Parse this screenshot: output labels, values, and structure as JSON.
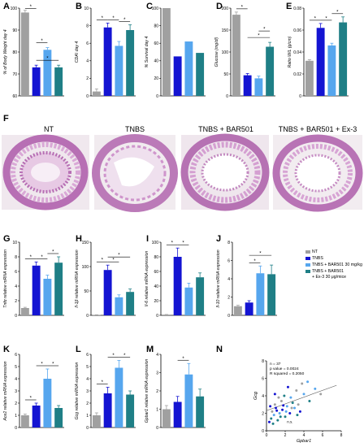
{
  "colors": {
    "nt": "#a0a0a0",
    "tnbs": "#1414d2",
    "tnbs_bar": "#56a6ee",
    "tnbs_bar_ex": "#1f7f86",
    "tissue": "#b76fb4",
    "tissue_light": "#e7c9e4"
  },
  "panel_letters": [
    "A",
    "B",
    "C",
    "D",
    "E",
    "F",
    "G",
    "H",
    "I",
    "J",
    "K",
    "L",
    "M",
    "N"
  ],
  "histology_labels": [
    "NT",
    "TNBS",
    "TNBS + BAR501",
    "TNBS + BAR501 + Ex-3"
  ],
  "legend": {
    "entries": [
      {
        "label": "NT",
        "color": "#a0a0a0"
      },
      {
        "label": "TNBS",
        "color": "#1414d2"
      },
      {
        "label": "TNBS + BAR501 30 mg/kg",
        "color": "#56a6ee"
      },
      {
        "label": "TNBS + BAR501",
        "color": "#1f7f86"
      }
    ],
    "extra": "+ Ex-3 30 μg/mice"
  },
  "chart_data": [
    {
      "panel": "A",
      "type": "bar",
      "categories": [
        "NT",
        "TNBS",
        "TNBS + BAR501 30 mg/kg",
        "TNBS + BAR501 + Ex-3"
      ],
      "values": [
        98,
        73,
        81,
        73
      ],
      "errors": [
        1,
        1,
        1,
        1
      ],
      "ylabel": "% of Body Weight day 4",
      "ylim": [
        60,
        100
      ],
      "yticks": [
        60,
        70,
        80,
        90,
        100
      ]
    },
    {
      "panel": "B",
      "type": "bar",
      "categories": [
        "NT",
        "TNBS",
        "TNBS + BAR501 30 mg/kg",
        "TNBS + BAR501 + Ex-3"
      ],
      "values": [
        0.5,
        7.8,
        5.7,
        7.5
      ],
      "errors": [
        0.3,
        0.5,
        0.5,
        0.6
      ],
      "ylabel": "CDAI day 4",
      "ylim": [
        0,
        10
      ],
      "yticks": [
        0,
        2,
        4,
        6,
        8,
        10
      ]
    },
    {
      "panel": "C",
      "type": "bar",
      "categories": [
        "NT",
        "TNBS",
        "TNBS + BAR501 30 mg/kg",
        "TNBS + BAR501 + Ex-3"
      ],
      "values": [
        100,
        45,
        62,
        49
      ],
      "errors": [
        0,
        0,
        0,
        0
      ],
      "ylabel": "% Survival day 4",
      "ylim": [
        0,
        100
      ],
      "yticks": [
        0,
        20,
        40,
        60,
        80,
        100
      ]
    },
    {
      "panel": "D",
      "type": "bar",
      "categories": [
        "NT",
        "TNBS",
        "TNBS + BAR501 30 mg/kg",
        "TNBS + BAR501 + Ex-3"
      ],
      "values": [
        185,
        47,
        40,
        112
      ],
      "errors": [
        6,
        4,
        5,
        10
      ],
      "ylabel": "Glucose (mg/dl)",
      "ylim": [
        0,
        200
      ],
      "yticks": [
        0,
        50,
        100,
        150,
        200
      ]
    },
    {
      "panel": "E",
      "type": "bar",
      "categories": [
        "NT",
        "TNBS",
        "TNBS + BAR501 30 mg/kg",
        "TNBS + BAR501 + Ex-3"
      ],
      "values": [
        0.032,
        0.062,
        0.046,
        0.067
      ],
      "errors": [
        0.001,
        0.004,
        0.002,
        0.005
      ],
      "ylabel": "Ratio W/L (g/cm)",
      "ylim": [
        0,
        0.08
      ],
      "yticks": [
        0,
        0.02,
        0.04,
        0.06,
        0.08
      ]
    },
    {
      "panel": "G",
      "type": "bar",
      "categories": [
        "NT",
        "TNBS",
        "TNBS + BAR501 30 mg/kg",
        "TNBS + BAR501 + Ex-3"
      ],
      "values": [
        1,
        6.8,
        5,
        7.2
      ],
      "errors": [
        0.1,
        0.5,
        0.5,
        0.8
      ],
      "ylabel": "Tnfα relative mRNA expression",
      "ylim": [
        0,
        10
      ],
      "yticks": [
        0,
        2,
        4,
        6,
        8,
        10
      ]
    },
    {
      "panel": "H",
      "type": "bar",
      "categories": [
        "NT",
        "TNBS",
        "TNBS + BAR501 30 mg/kg",
        "TNBS + BAR501 + Ex-3"
      ],
      "values": [
        1,
        93,
        37,
        48
      ],
      "errors": [
        0.2,
        10,
        5,
        6
      ],
      "ylabel": "Il-1β relative mRNA expression",
      "ylim": [
        0,
        150
      ],
      "yticks": [
        0,
        50,
        100,
        150
      ]
    },
    {
      "panel": "I",
      "type": "bar",
      "categories": [
        "NT",
        "TNBS",
        "TNBS + BAR501 30 mg/kg",
        "TNBS + BAR501 + Ex-3"
      ],
      "values": [
        1,
        80,
        38,
        52
      ],
      "errors": [
        0.2,
        12,
        6,
        6
      ],
      "ylabel": "Il-6 relative mRNA expression",
      "ylim": [
        0,
        100
      ],
      "yticks": [
        0,
        20,
        40,
        60,
        80,
        100
      ]
    },
    {
      "panel": "J",
      "type": "bar",
      "categories": [
        "NT",
        "TNBS",
        "TNBS + BAR501 30 mg/kg",
        "TNBS + BAR501 + Ex-3"
      ],
      "values": [
        1,
        1.4,
        4.6,
        4.5
      ],
      "errors": [
        0.1,
        0.2,
        0.8,
        1
      ],
      "ylabel": "Il-10 relative mRNA expression",
      "ylim": [
        0,
        8
      ],
      "yticks": [
        0,
        2,
        4,
        6,
        8
      ]
    },
    {
      "panel": "K",
      "type": "bar",
      "categories": [
        "NT",
        "TNBS",
        "TNBS + BAR501 30 mg/kg",
        "TNBS + BAR501 + Ex-3"
      ],
      "values": [
        1,
        1.8,
        4,
        1.6
      ],
      "errors": [
        0.1,
        0.2,
        0.8,
        0.2
      ],
      "ylabel": "Ace2 relative mRNA expression",
      "ylim": [
        0,
        6
      ],
      "yticks": [
        0,
        1,
        2,
        3,
        4,
        5,
        6
      ]
    },
    {
      "panel": "L",
      "type": "bar",
      "categories": [
        "NT",
        "TNBS",
        "TNBS + BAR501 30 mg/kg",
        "TNBS + BAR501 + Ex-3"
      ],
      "values": [
        1,
        2.8,
        4.9,
        2.7
      ],
      "errors": [
        0.2,
        0.5,
        0.6,
        0.3
      ],
      "ylabel": "Gcg relative mRNA expression",
      "ylim": [
        0,
        6
      ],
      "yticks": [
        0,
        1,
        2,
        3,
        4,
        5,
        6
      ]
    },
    {
      "panel": "M",
      "type": "bar",
      "categories": [
        "NT",
        "TNBS",
        "TNBS + BAR501 30 mg/kg",
        "TNBS + BAR501 + Ex-3"
      ],
      "values": [
        1,
        1.4,
        2.9,
        1.7
      ],
      "errors": [
        0.2,
        0.3,
        0.6,
        0.4
      ],
      "ylabel": "Gpbar1 relative mRNA expression",
      "ylim": [
        0,
        4
      ],
      "yticks": [
        0,
        1,
        2,
        3,
        4
      ]
    },
    {
      "panel": "N",
      "type": "scatter",
      "xlabel": "Gpbar1",
      "ylabel": "Gcg",
      "xlim": [
        0,
        8
      ],
      "ylim": [
        0,
        8
      ],
      "xticks": [
        0,
        2,
        4,
        6,
        8
      ],
      "yticks": [
        0,
        2,
        4,
        6,
        8
      ],
      "stats": [
        "n = 37",
        "p value = 0.0024",
        "R squared = 0.2050"
      ],
      "annotation": "n.s.",
      "points": [
        [
          0.3,
          1.0
        ],
        [
          0.5,
          1.4
        ],
        [
          0.8,
          1.8
        ],
        [
          0.6,
          2.2
        ],
        [
          1.0,
          2.6
        ],
        [
          1.2,
          1.2
        ],
        [
          1.4,
          2.0
        ],
        [
          0.9,
          3.0
        ],
        [
          1.7,
          2.4
        ],
        [
          2.0,
          1.6
        ],
        [
          2.2,
          2.8
        ],
        [
          1.6,
          3.4
        ],
        [
          2.5,
          2.0
        ],
        [
          2.8,
          3.2
        ],
        [
          3.0,
          2.6
        ],
        [
          1.3,
          3.8
        ],
        [
          0.4,
          2.8
        ],
        [
          0.7,
          0.8
        ],
        [
          2.6,
          3.8
        ],
        [
          3.4,
          3.0
        ],
        [
          3.6,
          2.2
        ],
        [
          1.9,
          4.0
        ],
        [
          4.0,
          4.2
        ],
        [
          3.2,
          4.6
        ],
        [
          2.3,
          5.0
        ],
        [
          4.6,
          3.4
        ],
        [
          5.2,
          4.8
        ],
        [
          3.8,
          5.4
        ],
        [
          1.1,
          2.3
        ],
        [
          1.5,
          1.6
        ],
        [
          2.1,
          2.2
        ],
        [
          2.7,
          2.6
        ],
        [
          0.9,
          4.2
        ],
        [
          3.3,
          1.8
        ],
        [
          4.4,
          5.6
        ],
        [
          5.8,
          4.2
        ],
        [
          1.8,
          2.9
        ]
      ],
      "fit": [
        [
          0,
          2.3
        ],
        [
          7.5,
          5.2
        ]
      ]
    }
  ]
}
